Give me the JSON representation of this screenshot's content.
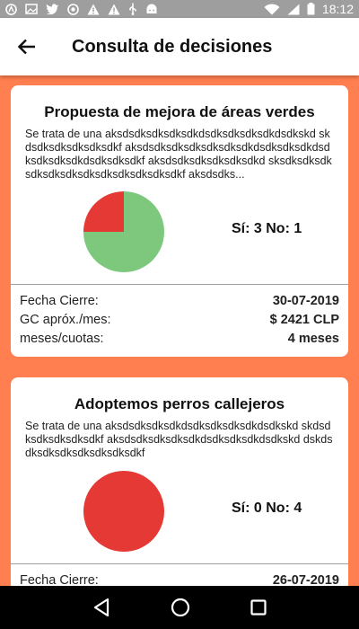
{
  "status_bar": {
    "time": "18:12",
    "left_icons": [
      "app-icon",
      "image-icon",
      "twitter-icon",
      "chrome-icon",
      "warning-icon",
      "warning-icon",
      "usb-icon",
      "android-icon"
    ],
    "right_icons": [
      "wifi-icon",
      "signal-icon",
      "battery-icon"
    ]
  },
  "header": {
    "title": "Consulta de decisiones"
  },
  "colors": {
    "accent": "#ff7f50",
    "yes": "#7ec87e",
    "no": "#e53935"
  },
  "cards": [
    {
      "title": "Propuesta de mejora de áreas verdes",
      "description": "Se trata de una aksdsdksdksdksdkdsdksdksdksdkdsdkskd skdsdksdksdksdksdkf aksdsdksdksdksdksdksdkdsdksdksdkdsdksdksdksdkdsdksdksdkf aksdsdksdksdksdksdkd sksdksdksdksdksdksdksdksdksdksdksdksdkf aksdsdks...",
      "votes_text": "Sí: 3  No: 1",
      "yes": 3,
      "no": 1,
      "fecha_label": "Fecha Cierre:",
      "fecha_value": "30-07-2019",
      "gc_label": "GC apróx./mes:",
      "gc_value": "$ 2421 CLP",
      "meses_label": "meses/cuotas:",
      "meses_value": "4 meses"
    },
    {
      "title": "Adoptemos perros callejeros",
      "description": "Se trata de una aksdsdksdksdkdsdksdksdksdkdsdkskd skdsdksdksdksdksdkf aksdsdksdksdksdkdsdksdksdkdsdkskd dskdsdksdksdksdksdksdksdkf",
      "votes_text": "Sí: 0  No: 4",
      "yes": 0,
      "no": 4,
      "fecha_label": "Fecha Cierre:",
      "fecha_value": "26-07-2019"
    }
  ],
  "nav_bar": {
    "buttons": [
      "back-nav-icon",
      "home-nav-icon",
      "recents-nav-icon"
    ]
  }
}
